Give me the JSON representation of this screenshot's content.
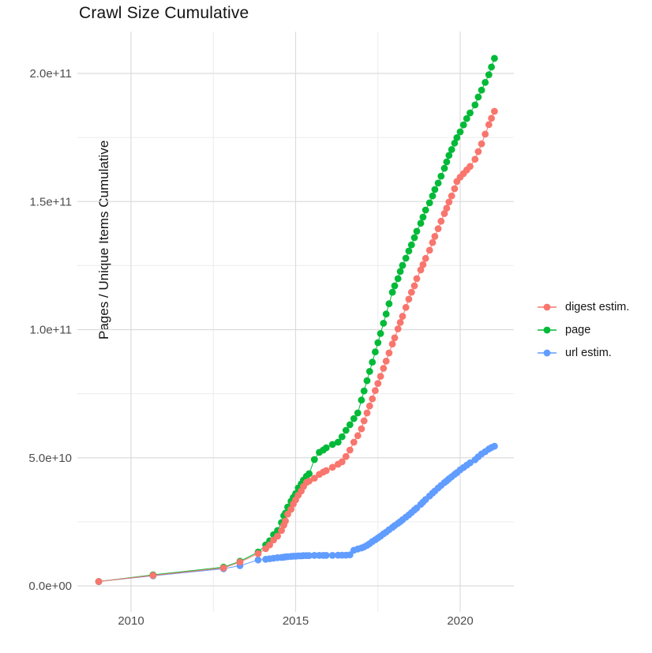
{
  "chart_data": {
    "type": "line",
    "title": "Crawl Size Cumulative",
    "xlabel": "",
    "ylabel": "Pages / Unique Items Cumulative",
    "values_unit": "1e9 pages/items (billions)",
    "grid": true,
    "legend_position": "right",
    "marker": "circle",
    "xlim": [
      2008.4,
      2021.65
    ],
    "ylim_e9": [
      -10,
      216
    ],
    "x_ticks": [
      {
        "label": "2010",
        "value": 2010
      },
      {
        "label": "2015",
        "value": 2015
      },
      {
        "label": "2020",
        "value": 2020
      }
    ],
    "x_minor_ticks": [
      2012.5,
      2017.5
    ],
    "y_ticks": [
      {
        "label": "0.0e+00",
        "value_e9": 0
      },
      {
        "label": "5.0e+10",
        "value_e9": 50
      },
      {
        "label": "1.0e+11",
        "value_e9": 100
      },
      {
        "label": "1.5e+11",
        "value_e9": 150
      },
      {
        "label": "2.0e+11",
        "value_e9": 200
      }
    ],
    "y_minor_ticks_e9": [
      25,
      75,
      125,
      175
    ],
    "x": [
      2009.02,
      2010.67,
      2012.81,
      2013.31,
      2013.86,
      2014.09,
      2014.21,
      2014.33,
      2014.45,
      2014.57,
      2014.64,
      2014.69,
      2014.76,
      2014.86,
      2014.93,
      2015.0,
      2015.08,
      2015.17,
      2015.24,
      2015.33,
      2015.41,
      2015.57,
      2015.72,
      2015.84,
      2015.93,
      2016.12,
      2016.29,
      2016.41,
      2016.53,
      2016.65,
      2016.77,
      2016.89,
      2017.0,
      2017.08,
      2017.17,
      2017.25,
      2017.33,
      2017.42,
      2017.5,
      2017.58,
      2017.67,
      2017.75,
      2017.84,
      2017.94,
      2018.01,
      2018.11,
      2018.18,
      2018.25,
      2018.35,
      2018.44,
      2018.52,
      2018.61,
      2018.68,
      2018.8,
      2018.87,
      2018.95,
      2019.07,
      2019.16,
      2019.23,
      2019.33,
      2019.42,
      2019.52,
      2019.59,
      2019.66,
      2019.74,
      2019.83,
      2019.9,
      2020.0,
      2020.1,
      2020.2,
      2020.3,
      2020.45,
      2020.55,
      2020.65,
      2020.76,
      2020.87,
      2020.95,
      2021.04
    ],
    "series": [
      {
        "name": "digest estim.",
        "color": "#F8766D",
        "values_e9": [
          1.7,
          4.1,
          7.0,
          9.3,
          12.6,
          14.5,
          16.0,
          17.9,
          19.4,
          21.6,
          23.7,
          25.3,
          28.0,
          29.9,
          32.0,
          33.6,
          35.4,
          37.0,
          38.8,
          40.4,
          40.9,
          42.0,
          43.5,
          44.4,
          45.0,
          46.3,
          47.5,
          48.4,
          50.5,
          53.0,
          56.1,
          58.6,
          61.3,
          64.4,
          67.5,
          70.2,
          73.0,
          76.2,
          79.0,
          81.8,
          84.9,
          87.7,
          90.9,
          94.4,
          96.8,
          100.3,
          102.8,
          105.2,
          108.7,
          111.9,
          114.6,
          117.1,
          119.9,
          123.3,
          125.4,
          127.8,
          131.0,
          134.0,
          136.4,
          139.4,
          142.3,
          145.3,
          147.4,
          149.8,
          152.2,
          155.0,
          157.8,
          159.5,
          160.9,
          162.3,
          163.7,
          166.5,
          169.5,
          172.5,
          176.3,
          180.0,
          182.5,
          185.2
        ]
      },
      {
        "name": "page",
        "color": "#00BA38",
        "values_e9": [
          1.7,
          4.3,
          7.3,
          9.6,
          13.2,
          16.0,
          17.6,
          20.0,
          21.6,
          24.7,
          27.4,
          28.4,
          30.8,
          33.0,
          34.5,
          36.0,
          38.2,
          39.8,
          41.3,
          42.8,
          43.8,
          49.3,
          52.1,
          53.0,
          53.9,
          55.2,
          56.1,
          58.2,
          60.7,
          62.9,
          65.3,
          67.5,
          72.5,
          76.1,
          80.1,
          83.7,
          87.3,
          91.3,
          94.9,
          98.5,
          102.5,
          106.1,
          110.1,
          114.6,
          117.1,
          119.9,
          122.7,
          125.1,
          127.9,
          130.7,
          133.1,
          135.9,
          138.4,
          141.5,
          143.9,
          146.7,
          149.5,
          152.2,
          154.7,
          157.2,
          159.9,
          163.0,
          165.5,
          168.0,
          170.3,
          172.8,
          174.9,
          177.2,
          179.9,
          182.4,
          184.6,
          187.7,
          190.8,
          193.5,
          196.5,
          199.5,
          202.5,
          205.9
        ]
      },
      {
        "name": "url estim.",
        "color": "#619CFF",
        "values_e9": [
          1.7,
          3.9,
          6.7,
          7.9,
          10.1,
          10.4,
          10.6,
          10.8,
          11.0,
          11.1,
          11.2,
          11.3,
          11.4,
          11.5,
          11.6,
          11.6,
          11.7,
          11.7,
          11.8,
          11.8,
          11.8,
          11.9,
          11.9,
          11.9,
          11.9,
          11.9,
          12.0,
          12.0,
          12.0,
          12.1,
          13.9,
          14.4,
          14.8,
          15.2,
          15.8,
          16.5,
          17.3,
          18.0,
          18.7,
          19.4,
          20.3,
          21.0,
          21.9,
          22.8,
          23.5,
          24.4,
          25.1,
          25.8,
          26.8,
          27.7,
          28.6,
          29.6,
          30.4,
          31.8,
          32.7,
          33.7,
          35.1,
          36.2,
          37.0,
          38.2,
          39.2,
          40.3,
          41.0,
          41.8,
          42.6,
          43.5,
          44.2,
          45.3,
          46.2,
          47.1,
          48.0,
          49.2,
          50.4,
          51.5,
          52.4,
          53.4,
          54.0,
          54.5
        ]
      }
    ]
  },
  "style": {
    "grid_major_color": "#dcdcdc",
    "grid_minor_color": "#ececec",
    "background": "#ffffff",
    "tick_label_color": "#4d4d4d",
    "text_color": "#131313"
  }
}
